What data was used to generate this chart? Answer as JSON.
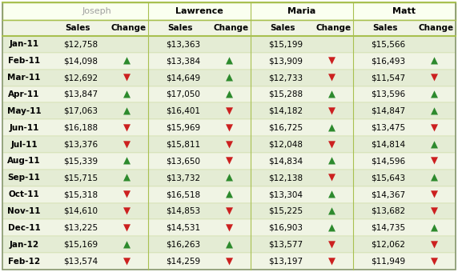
{
  "months": [
    "Jan-11",
    "Feb-11",
    "Mar-11",
    "Apr-11",
    "May-11",
    "Jun-11",
    "Jul-11",
    "Aug-11",
    "Sep-11",
    "Oct-11",
    "Nov-11",
    "Dec-11",
    "Jan-12",
    "Feb-12"
  ],
  "people": [
    "Joseph",
    "Lawrence",
    "Maria",
    "Matt"
  ],
  "sales": {
    "Joseph": [
      12758,
      14098,
      12692,
      13847,
      17063,
      16188,
      13376,
      15339,
      15715,
      15318,
      14610,
      13225,
      15169,
      13574
    ],
    "Lawrence": [
      13363,
      13384,
      14649,
      17050,
      16401,
      15969,
      15811,
      13650,
      13732,
      16518,
      14853,
      14531,
      16263,
      14259
    ],
    "Maria": [
      15199,
      13909,
      12733,
      15288,
      14182,
      16725,
      12048,
      14834,
      12138,
      13304,
      15225,
      16903,
      13577,
      13197
    ],
    "Matt": [
      15566,
      16493,
      11547,
      13596,
      14847,
      13475,
      14814,
      14596,
      15643,
      14367,
      13682,
      14735,
      12062,
      11949
    ]
  },
  "changes": {
    "Joseph": [
      null,
      1,
      -1,
      1,
      1,
      -1,
      -1,
      1,
      1,
      -1,
      -1,
      -1,
      1,
      -1
    ],
    "Lawrence": [
      null,
      1,
      1,
      1,
      -1,
      -1,
      -1,
      -1,
      1,
      1,
      -1,
      -1,
      1,
      -1
    ],
    "Maria": [
      null,
      -1,
      -1,
      1,
      -1,
      1,
      -1,
      1,
      -1,
      1,
      1,
      1,
      -1,
      -1
    ],
    "Matt": [
      null,
      1,
      -1,
      1,
      1,
      -1,
      1,
      -1,
      1,
      -1,
      -1,
      1,
      -1,
      -1
    ]
  },
  "joseph_color": "#a0a0a0",
  "green_arrow": "#2d8a2d",
  "red_arrow": "#cc2020",
  "header_name_bg": "#f0f4e4",
  "subheader_bg": "#f0f4e4",
  "row_bg_light": "#f0f4e4",
  "row_bg_mid": "#e4ecd4",
  "header_line_color": "#a8c050",
  "border_color": "#889870",
  "fig_width": 5.72,
  "fig_height": 3.4,
  "dpi": 100
}
